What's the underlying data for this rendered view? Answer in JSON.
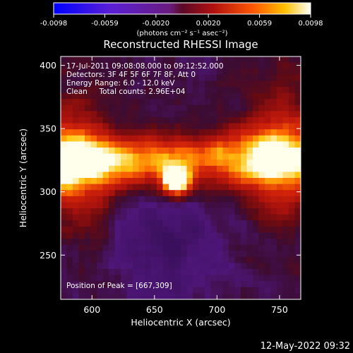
{
  "chart_data": {
    "type": "heatmap",
    "title": "Reconstructed RHESSI Image",
    "xlabel": "Heliocentric X (arcsec)",
    "ylabel": "Heliocentric Y (arcsec)",
    "xlim": [
      575,
      767
    ],
    "ylim": [
      215,
      407
    ],
    "x_ticks": [
      600,
      650,
      700,
      750
    ],
    "y_ticks": [
      250,
      300,
      350,
      400
    ],
    "colorbar": {
      "ticks": [
        -0.0098,
        -0.0059,
        -0.002,
        0.002,
        0.0059,
        0.0098
      ],
      "tick_labels": [
        "-0.0098",
        "-0.0059",
        "-0.0020",
        "0.0020",
        "0.0059",
        "0.0098"
      ],
      "unit_label": "(photons cm⁻² s⁻¹ asec⁻²)",
      "range": [
        -0.0098,
        0.0098
      ]
    },
    "annotations": [
      "17-Jul-2011 09:08:08.000 to 09:12:52.000",
      "Detectors: 3F 4F 5F 6F 7F 8F, Att 0",
      "Energy Range: 6.0 - 12.0 keV",
      "Clean     Total counts: 2.96E+04"
    ],
    "peak": {
      "x": 667,
      "y": 309,
      "label": "Position of Peak = [667,309]"
    },
    "grid": false
  },
  "footer": {
    "timestamp": "12-May-2022 09:32"
  }
}
